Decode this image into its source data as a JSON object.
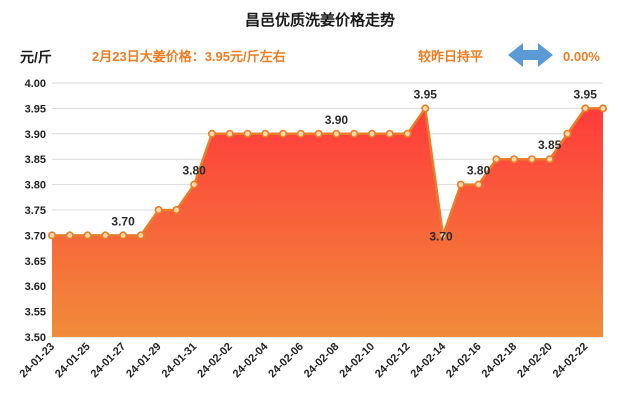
{
  "header": {
    "title": "昌邑优质洗姜价格走势",
    "unit": "元/斤",
    "price_note": "2月23日大姜价格：3.95元/斤左右",
    "compare_label": "较昨日持平",
    "change_pct": "0.00%"
  },
  "colors": {
    "line": "#e87e2a",
    "area_top": "#ff3b3b",
    "area_bottom": "#f08c3a",
    "accent_text": "#ee7d22",
    "arrow": "#5b9bd5"
  },
  "icons": {
    "compare": "left-right-arrow-icon"
  },
  "chart_data": {
    "type": "area",
    "title": "昌邑优质洗姜价格走势",
    "ylabel": "元/斤",
    "ylim": [
      3.5,
      4.0
    ],
    "yticks": [
      "3.50",
      "3.55",
      "3.60",
      "3.65",
      "3.70",
      "3.75",
      "3.80",
      "3.85",
      "3.90",
      "3.95",
      "4.00"
    ],
    "grid": true,
    "x": [
      "24-01-23",
      "24-01-24",
      "24-01-25",
      "24-01-26",
      "24-01-27",
      "24-01-28",
      "24-01-29",
      "24-01-30",
      "24-01-31",
      "24-02-01",
      "24-02-02",
      "24-02-03",
      "24-02-04",
      "24-02-05",
      "24-02-06",
      "24-02-07",
      "24-02-08",
      "24-02-09",
      "24-02-10",
      "24-02-11",
      "24-02-12",
      "24-02-13",
      "24-02-14",
      "24-02-15",
      "24-02-16",
      "24-02-17",
      "24-02-18",
      "24-02-19",
      "24-02-20",
      "24-02-21",
      "24-02-22",
      "24-02-23"
    ],
    "xtick_labels": [
      "24-01-23",
      "24-01-25",
      "24-01-27",
      "24-01-29",
      "24-01-31",
      "24-02-02",
      "24-02-04",
      "24-02-06",
      "24-02-08",
      "24-02-10",
      "24-02-12",
      "24-02-14",
      "24-02-16",
      "24-02-18",
      "24-02-20",
      "24-02-22"
    ],
    "values": [
      3.7,
      3.7,
      3.7,
      3.7,
      3.7,
      3.7,
      3.75,
      3.75,
      3.8,
      3.9,
      3.9,
      3.9,
      3.9,
      3.9,
      3.9,
      3.9,
      3.9,
      3.9,
      3.9,
      3.9,
      3.9,
      3.95,
      3.7,
      3.8,
      3.8,
      3.85,
      3.85,
      3.85,
      3.85,
      3.9,
      3.95,
      3.95
    ],
    "annotations": [
      {
        "x": "24-01-27",
        "label": "3.70"
      },
      {
        "x": "24-01-31",
        "label": "3.80"
      },
      {
        "x": "24-02-08",
        "label": "3.90"
      },
      {
        "x": "24-02-13",
        "label": "3.95"
      },
      {
        "x": "24-02-14",
        "label": "3.70"
      },
      {
        "x": "24-02-16",
        "label": "3.80"
      },
      {
        "x": "24-02-20",
        "label": "3.85"
      },
      {
        "x": "24-02-22",
        "label": "3.95"
      }
    ]
  }
}
